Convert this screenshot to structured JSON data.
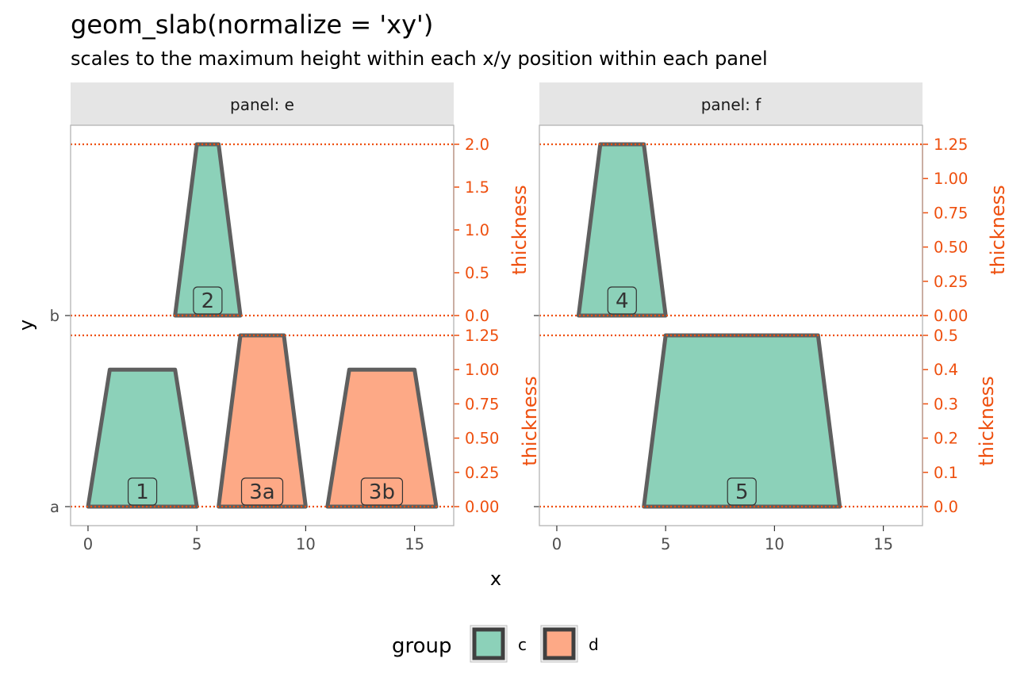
{
  "title": "geom_slab(normalize = 'xy')",
  "subtitle": "scales to the maximum height within each x/y position within each panel",
  "colors": {
    "fill_c": "#8cd1b9",
    "fill_d": "#fda986",
    "outline": "#5f5f5f",
    "thickness_axis": "#ee4f0e",
    "strip_bg": "#e5e5e5",
    "panel_border": "#b3b3b3"
  },
  "chart_data": {
    "type": "area",
    "xlabel": "x",
    "ylabel": "y",
    "xlim": [
      -0.8,
      16.8
    ],
    "x_ticks": [
      0,
      5,
      10,
      15
    ],
    "y_categories": [
      "a",
      "b"
    ],
    "legend": {
      "title": "group",
      "position": "bottom",
      "entries": [
        {
          "label": "c",
          "color": "#8cd1b9"
        },
        {
          "label": "d",
          "color": "#fda986"
        }
      ]
    },
    "panels": [
      {
        "strip": "panel: e",
        "rows": [
          {
            "y": "b",
            "thickness_label": "thickness",
            "thickness_ticks": [
              "0.0",
              "0.5",
              "1.0",
              "1.5",
              "2.0"
            ],
            "thickness_tick_values": [
              0,
              0.5,
              1.0,
              1.5,
              2.0
            ],
            "thickness_max": 2.0,
            "slabs": [
              {
                "label": "2",
                "group": "c",
                "points": [
                  [
                    4,
                    0
                  ],
                  [
                    5,
                    2
                  ],
                  [
                    6,
                    2
                  ],
                  [
                    7,
                    0
                  ]
                ],
                "label_x": 5.5
              }
            ]
          },
          {
            "y": "a",
            "thickness_label": "thickness",
            "thickness_ticks": [
              "0.00",
              "0.25",
              "0.50",
              "0.75",
              "1.00",
              "1.25"
            ],
            "thickness_tick_values": [
              0,
              0.25,
              0.5,
              0.75,
              1.0,
              1.25
            ],
            "thickness_max": 1.25,
            "slabs": [
              {
                "label": "1",
                "group": "c",
                "points": [
                  [
                    0,
                    0
                  ],
                  [
                    1,
                    1
                  ],
                  [
                    4,
                    1
                  ],
                  [
                    5,
                    0
                  ]
                ],
                "label_x": 2.5
              },
              {
                "label": "3a",
                "group": "d",
                "points": [
                  [
                    6,
                    0
                  ],
                  [
                    7,
                    1.25
                  ],
                  [
                    9,
                    1.25
                  ],
                  [
                    10,
                    0
                  ]
                ],
                "label_x": 8
              },
              {
                "label": "3b",
                "group": "d",
                "points": [
                  [
                    11,
                    0
                  ],
                  [
                    12,
                    1
                  ],
                  [
                    15,
                    1
                  ],
                  [
                    16,
                    0
                  ]
                ],
                "label_x": 13.5
              }
            ]
          }
        ]
      },
      {
        "strip": "panel: f",
        "rows": [
          {
            "y": "b",
            "thickness_label": "thickness",
            "thickness_ticks": [
              "0.00",
              "0.25",
              "0.50",
              "0.75",
              "1.00",
              "1.25"
            ],
            "thickness_tick_values": [
              0,
              0.25,
              0.5,
              0.75,
              1.0,
              1.25
            ],
            "thickness_max": 1.25,
            "slabs": [
              {
                "label": "4",
                "group": "c",
                "points": [
                  [
                    1,
                    0
                  ],
                  [
                    2,
                    1.25
                  ],
                  [
                    4,
                    1.25
                  ],
                  [
                    5,
                    0
                  ]
                ],
                "label_x": 3
              }
            ]
          },
          {
            "y": "a",
            "thickness_label": "thickness",
            "thickness_ticks": [
              "0.0",
              "0.1",
              "0.2",
              "0.3",
              "0.4",
              "0.5"
            ],
            "thickness_tick_values": [
              0,
              0.1,
              0.2,
              0.3,
              0.4,
              0.5
            ],
            "thickness_max": 0.5,
            "slabs": [
              {
                "label": "5",
                "group": "c",
                "points": [
                  [
                    4,
                    0
                  ],
                  [
                    5,
                    0.5
                  ],
                  [
                    12,
                    0.5
                  ],
                  [
                    13,
                    0
                  ]
                ],
                "label_x": 8.5
              }
            ]
          }
        ]
      }
    ]
  }
}
